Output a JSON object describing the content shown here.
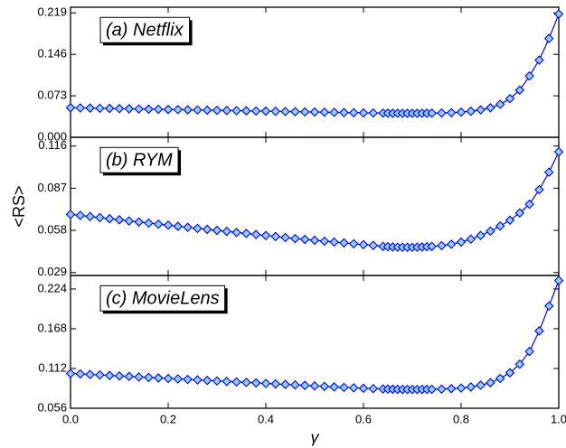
{
  "chart_data": [
    {
      "type": "line",
      "annotation": "(a) Netflix",
      "x": [
        0,
        0.02,
        0.04,
        0.06,
        0.08,
        0.1,
        0.12,
        0.14,
        0.16,
        0.18,
        0.2,
        0.22,
        0.24,
        0.26,
        0.28,
        0.3,
        0.32,
        0.34,
        0.36,
        0.38,
        0.4,
        0.42,
        0.44,
        0.46,
        0.48,
        0.5,
        0.52,
        0.54,
        0.56,
        0.58,
        0.6,
        0.62,
        0.64,
        0.65,
        0.66,
        0.67,
        0.68,
        0.69,
        0.7,
        0.71,
        0.72,
        0.73,
        0.74,
        0.76,
        0.78,
        0.8,
        0.82,
        0.84,
        0.86,
        0.88,
        0.9,
        0.92,
        0.94,
        0.96,
        0.98,
        1.0
      ],
      "series": [
        {
          "color": "#0000ff",
          "marker_fill": "#8fd0ff",
          "values": [
            0.052,
            0.0517,
            0.0514,
            0.0511,
            0.0508,
            0.0505,
            0.0502,
            0.0499,
            0.0496,
            0.0493,
            0.049,
            0.0487,
            0.0484,
            0.0481,
            0.0478,
            0.0475,
            0.0472,
            0.0469,
            0.0466,
            0.0463,
            0.046,
            0.0457,
            0.0454,
            0.0451,
            0.0448,
            0.0445,
            0.0442,
            0.0439,
            0.0436,
            0.0433,
            0.043,
            0.0428,
            0.0426,
            0.0425,
            0.0424,
            0.0423,
            0.0422,
            0.0422,
            0.0422,
            0.0422,
            0.0423,
            0.0424,
            0.0425,
            0.0428,
            0.0433,
            0.0443,
            0.0458,
            0.0483,
            0.052,
            0.058,
            0.068,
            0.083,
            0.108,
            0.136,
            0.174,
            0.217
          ]
        }
      ],
      "xlim": [
        0,
        1.0
      ],
      "xticks": [
        {
          "value": 0,
          "label": "0.0"
        },
        0.2,
        0.4,
        0.6,
        0.8,
        {
          "value": 1.0,
          "label": "1.0"
        }
      ],
      "ylim": [
        0,
        0.229
      ],
      "yticks": [
        {
          "value": 0,
          "label": "0.000"
        },
        0.073,
        0.146,
        0.219
      ]
    },
    {
      "type": "line",
      "annotation": "(b) RYM",
      "ylabel": "<RS>",
      "x": [
        0,
        0.02,
        0.04,
        0.06,
        0.08,
        0.1,
        0.12,
        0.14,
        0.16,
        0.18,
        0.2,
        0.22,
        0.24,
        0.26,
        0.28,
        0.3,
        0.32,
        0.34,
        0.36,
        0.38,
        0.4,
        0.42,
        0.44,
        0.46,
        0.48,
        0.5,
        0.52,
        0.54,
        0.56,
        0.58,
        0.6,
        0.62,
        0.64,
        0.65,
        0.66,
        0.67,
        0.68,
        0.69,
        0.7,
        0.71,
        0.72,
        0.73,
        0.74,
        0.76,
        0.78,
        0.8,
        0.82,
        0.84,
        0.86,
        0.88,
        0.9,
        0.92,
        0.94,
        0.96,
        0.98,
        1.0
      ],
      "series": [
        {
          "color": "#0000ff",
          "marker_fill": "#8fd0ff",
          "values": [
            0.069,
            0.0683,
            0.0675,
            0.0668,
            0.066,
            0.0653,
            0.0645,
            0.0638,
            0.063,
            0.0623,
            0.0616,
            0.0608,
            0.0601,
            0.0594,
            0.0587,
            0.058,
            0.0573,
            0.0566,
            0.0559,
            0.0552,
            0.0545,
            0.0538,
            0.0531,
            0.0524,
            0.0518,
            0.0512,
            0.0506,
            0.05,
            0.0494,
            0.0488,
            0.0482,
            0.0477,
            0.047,
            0.0468,
            0.0466,
            0.0465,
            0.0464,
            0.0464,
            0.0464,
            0.0465,
            0.0466,
            0.0468,
            0.047,
            0.0475,
            0.0485,
            0.05,
            0.052,
            0.0545,
            0.0575,
            0.061,
            0.065,
            0.07,
            0.076,
            0.086,
            0.098,
            0.112
          ]
        }
      ],
      "xlim": [
        0,
        1.0
      ],
      "xticks": [
        {
          "value": 0,
          "label": "0.0"
        },
        0.2,
        0.4,
        0.6,
        0.8,
        {
          "value": 1.0,
          "label": "1.0"
        }
      ],
      "ylim": [
        0.027,
        0.122
      ],
      "yticks": [
        0.029,
        0.058,
        0.087,
        0.116
      ]
    },
    {
      "type": "line",
      "annotation": "(c) MovieLens",
      "xlabel": "γ",
      "x": [
        0,
        0.02,
        0.04,
        0.06,
        0.08,
        0.1,
        0.12,
        0.14,
        0.16,
        0.18,
        0.2,
        0.22,
        0.24,
        0.26,
        0.28,
        0.3,
        0.32,
        0.34,
        0.36,
        0.38,
        0.4,
        0.42,
        0.44,
        0.46,
        0.48,
        0.5,
        0.52,
        0.54,
        0.56,
        0.58,
        0.6,
        0.62,
        0.64,
        0.65,
        0.66,
        0.67,
        0.68,
        0.69,
        0.7,
        0.71,
        0.72,
        0.73,
        0.74,
        0.76,
        0.78,
        0.8,
        0.82,
        0.84,
        0.86,
        0.88,
        0.9,
        0.92,
        0.94,
        0.96,
        0.98,
        1.0
      ],
      "series": [
        {
          "color": "#0000ff",
          "marker_fill": "#8fd0ff",
          "values": [
            0.105,
            0.1043,
            0.1036,
            0.1029,
            0.1022,
            0.1015,
            0.1008,
            0.1001,
            0.0994,
            0.0987,
            0.098,
            0.0973,
            0.0966,
            0.0959,
            0.0952,
            0.0945,
            0.0938,
            0.0931,
            0.0924,
            0.0917,
            0.091,
            0.0903,
            0.0896,
            0.0889,
            0.0882,
            0.0875,
            0.0868,
            0.0861,
            0.0854,
            0.0848,
            0.0842,
            0.0837,
            0.0832,
            0.083,
            0.0828,
            0.0826,
            0.0825,
            0.0824,
            0.0824,
            0.0824,
            0.0825,
            0.0826,
            0.0827,
            0.083,
            0.0836,
            0.0845,
            0.086,
            0.0885,
            0.092,
            0.098,
            0.106,
            0.118,
            0.136,
            0.165,
            0.2,
            0.236
          ]
        }
      ],
      "xlim": [
        0,
        1.0
      ],
      "xticks": [
        {
          "value": 0,
          "label": "0.0"
        },
        0.2,
        0.4,
        0.6,
        0.8,
        {
          "value": 1.0,
          "label": "1.0"
        }
      ],
      "ylim": [
        0.056,
        0.243
      ],
      "yticks": [
        0.056,
        0.112,
        0.168,
        0.224
      ]
    }
  ]
}
